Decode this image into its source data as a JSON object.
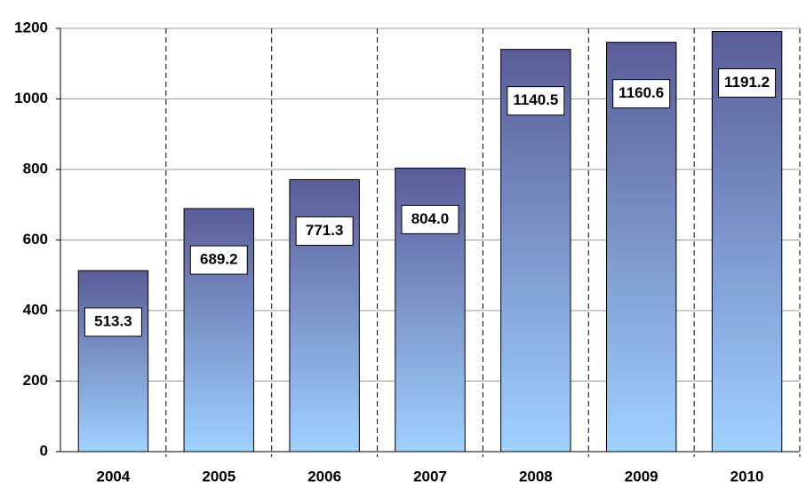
{
  "chart_data": {
    "type": "bar",
    "categories": [
      "2004",
      "2005",
      "2006",
      "2007",
      "2008",
      "2009",
      "2010"
    ],
    "values": [
      513.3,
      689.2,
      771.3,
      804.0,
      1140.5,
      1160.6,
      1191.2
    ],
    "value_labels": [
      "513.3",
      "689.2",
      "771.3",
      "804.0",
      "1140.5",
      "1160.6",
      "1191.2"
    ],
    "colors": [
      "#5a5c98",
      "#9fd2ff"
    ],
    "ylim": [
      0,
      1200
    ],
    "yticks": [
      0,
      200,
      400,
      600,
      800,
      1000,
      1200
    ],
    "grid": true
  }
}
